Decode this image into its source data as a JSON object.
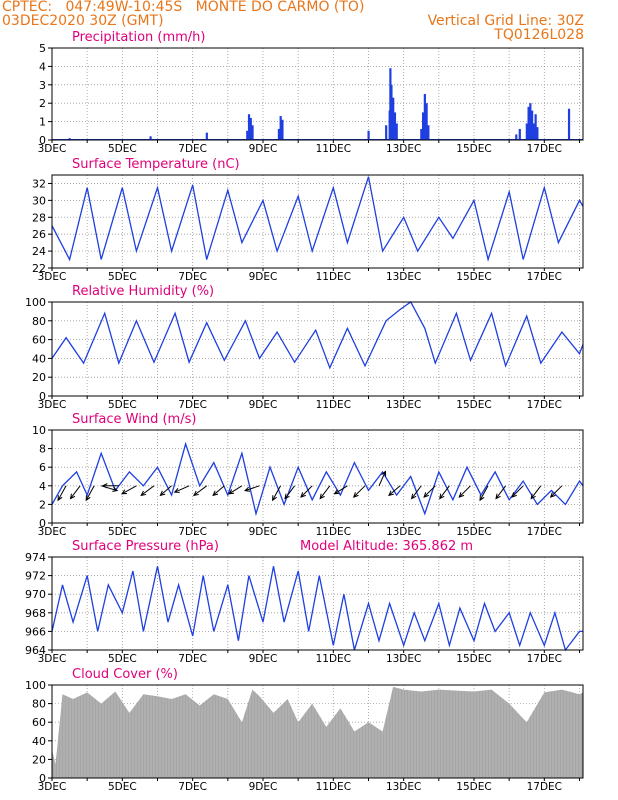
{
  "header": {
    "line1": "CPTEC:   047:49W-10:45S   MONTE DO CARMO (TO)",
    "line2": "03DEC2020 30Z (GMT)",
    "grid_note": "Vertical Grid Line: 30Z",
    "code": "TQ0126L028"
  },
  "colors": {
    "header": "#e8761a",
    "title": "#e0007a",
    "line": "#1f3fe0",
    "cloud": "#a6a6a6",
    "arrow": "#000000"
  },
  "chart_data": [
    {
      "id": "precip",
      "type": "bar",
      "title": "Precipitation (mm/h)",
      "ylim": [
        0,
        5
      ],
      "yticks": [
        0,
        1,
        2,
        3,
        4,
        5
      ],
      "xticks": [
        "3DEC",
        "5DEC",
        "7DEC",
        "9DEC",
        "11DEC",
        "13DEC",
        "15DEC",
        "17DEC"
      ],
      "xtick_days": [
        3,
        5,
        7,
        9,
        11,
        13,
        15,
        17
      ],
      "xlim_days": [
        3,
        18.1
      ],
      "x_days": [
        3.5,
        4.2,
        5.8,
        7.4,
        8.55,
        8.6,
        8.65,
        8.7,
        9.45,
        9.5,
        9.55,
        12.0,
        12.5,
        12.6,
        12.62,
        12.65,
        12.7,
        12.75,
        12.8,
        13.5,
        13.55,
        13.6,
        13.65,
        13.7,
        16.2,
        16.3,
        16.5,
        16.55,
        16.6,
        16.65,
        16.7,
        16.75,
        16.8,
        17.7
      ],
      "values": [
        0.1,
        0.05,
        0.2,
        0.4,
        0.5,
        1.4,
        1.2,
        0.8,
        0.6,
        1.3,
        1.1,
        0.5,
        0.8,
        1.6,
        3.9,
        3.0,
        2.3,
        1.5,
        0.9,
        0.6,
        1.5,
        2.5,
        2.0,
        0.8,
        0.3,
        0.6,
        0.9,
        1.8,
        2.0,
        1.6,
        0.9,
        1.4,
        0.7,
        1.7
      ]
    },
    {
      "id": "temp",
      "type": "line",
      "title": "Surface Temperature (nC)",
      "ylim": [
        22,
        33
      ],
      "yticks": [
        22,
        24,
        26,
        28,
        30,
        32
      ],
      "xticks": [
        "3DEC",
        "5DEC",
        "7DEC",
        "9DEC",
        "11DEC",
        "13DEC",
        "15DEC",
        "17DEC"
      ],
      "xtick_days": [
        3,
        5,
        7,
        9,
        11,
        13,
        15,
        17
      ],
      "xlim_days": [
        3,
        18.1
      ],
      "x_days": [
        3.0,
        3.5,
        4.0,
        4.4,
        5.0,
        5.4,
        6.0,
        6.4,
        7.0,
        7.4,
        8.0,
        8.4,
        9.0,
        9.4,
        10.0,
        10.4,
        11.0,
        11.4,
        12.0,
        12.4,
        13.0,
        13.4,
        14.0,
        14.4,
        15.0,
        15.4,
        16.0,
        16.4,
        17.0,
        17.4,
        18.0,
        18.1
      ],
      "values": [
        27,
        23,
        31.5,
        23,
        31.5,
        24,
        31.5,
        24,
        31.8,
        23,
        31.2,
        25,
        30,
        24,
        30.5,
        24,
        31.5,
        25,
        32.8,
        24,
        28,
        24,
        28,
        25.5,
        30,
        23,
        31,
        23,
        31.5,
        25,
        30,
        29.3
      ]
    },
    {
      "id": "rh",
      "type": "line",
      "title": "Relative Humidity (%)",
      "ylim": [
        0,
        100
      ],
      "yticks": [
        0,
        20,
        40,
        60,
        80,
        100
      ],
      "xticks": [
        "3DEC",
        "5DEC",
        "7DEC",
        "9DEC",
        "11DEC",
        "13DEC",
        "15DEC",
        "17DEC"
      ],
      "xtick_days": [
        3,
        5,
        7,
        9,
        11,
        13,
        15,
        17
      ],
      "xlim_days": [
        3,
        18.1
      ],
      "x_days": [
        3.0,
        3.4,
        3.9,
        4.5,
        4.9,
        5.4,
        5.9,
        6.5,
        6.9,
        7.4,
        7.9,
        8.5,
        8.9,
        9.4,
        9.9,
        10.5,
        10.9,
        11.4,
        11.9,
        12.5,
        12.9,
        13.2,
        13.6,
        13.9,
        14.5,
        14.9,
        15.5,
        15.9,
        16.5,
        16.9,
        17.5,
        18.0,
        18.1
      ],
      "values": [
        40,
        62,
        35,
        88,
        35,
        80,
        36,
        88,
        36,
        78,
        38,
        80,
        40,
        68,
        36,
        70,
        30,
        72,
        32,
        80,
        92,
        100,
        72,
        35,
        88,
        38,
        88,
        32,
        85,
        35,
        68,
        45,
        55
      ]
    },
    {
      "id": "wind",
      "type": "line",
      "title": "Surface Wind (m/s)",
      "ylim": [
        0,
        10
      ],
      "yticks": [
        0,
        2,
        4,
        6,
        8,
        10
      ],
      "xticks": [
        "3DEC",
        "5DEC",
        "7DEC",
        "9DEC",
        "11DEC",
        "13DEC",
        "15DEC",
        "17DEC"
      ],
      "xtick_days": [
        3,
        5,
        7,
        9,
        11,
        13,
        15,
        17
      ],
      "xlim_days": [
        3,
        18.1
      ],
      "x_days": [
        3.0,
        3.3,
        3.7,
        4.0,
        4.4,
        4.8,
        5.2,
        5.6,
        6.0,
        6.4,
        6.8,
        7.2,
        7.6,
        8.0,
        8.4,
        8.8,
        9.2,
        9.6,
        10.0,
        10.4,
        10.8,
        11.2,
        11.6,
        12.0,
        12.4,
        12.8,
        13.2,
        13.6,
        14.0,
        14.4,
        14.8,
        15.2,
        15.6,
        16.0,
        16.4,
        16.8,
        17.2,
        17.6,
        18.0,
        18.1
      ],
      "values": [
        2,
        4,
        5.5,
        3,
        7.5,
        3.5,
        5.5,
        4,
        6,
        3,
        8.5,
        4,
        6.5,
        3,
        7.5,
        1,
        6,
        2,
        6,
        2.5,
        5.5,
        3,
        6.5,
        3.5,
        5.5,
        3,
        5,
        1,
        5.5,
        2.5,
        6,
        3,
        5.5,
        2.5,
        4.5,
        2,
        3.5,
        2,
        4.5,
        4
      ],
      "arrows_x_days": [
        3.4,
        3.8,
        4.2,
        4.4,
        4.9,
        5.4,
        5.9,
        6.4,
        6.9,
        7.4,
        7.9,
        8.4,
        8.9,
        9.5,
        9.9,
        10.4,
        10.9,
        11.4,
        11.9,
        12.3,
        12.9,
        13.5,
        13.9,
        14.3,
        14.9,
        15.4,
        15.9,
        16.4,
        16.9,
        17.5
      ],
      "arrows_dx": [
        -0.5,
        -0.6,
        -0.5,
        1.0,
        -1.0,
        -0.9,
        -0.8,
        -0.7,
        -0.9,
        -0.8,
        -0.7,
        -0.8,
        -0.9,
        -0.5,
        -0.6,
        -0.7,
        -0.6,
        -0.8,
        -0.7,
        0.4,
        -0.7,
        -0.6,
        -0.7,
        -0.6,
        -0.7,
        -0.5,
        -0.6,
        -0.7,
        -0.6,
        -0.7
      ],
      "arrows_dy": [
        -0.9,
        -0.8,
        -0.9,
        -0.3,
        0.0,
        -0.5,
        -0.6,
        -0.6,
        -0.4,
        -0.6,
        -0.6,
        -0.5,
        -0.3,
        -0.9,
        -0.8,
        -0.7,
        -0.8,
        -0.5,
        -0.7,
        0.9,
        -0.6,
        -0.8,
        -0.7,
        -0.8,
        -0.7,
        -0.9,
        -0.8,
        -0.7,
        -0.8,
        -0.7
      ]
    },
    {
      "id": "press",
      "type": "line",
      "title": "Surface Pressure (hPa)",
      "subtitle": "Model Altitude: 365.862  m",
      "ylim": [
        964,
        974
      ],
      "yticks": [
        964,
        966,
        968,
        970,
        972,
        974
      ],
      "xticks": [
        "3DEC",
        "5DEC",
        "7DEC",
        "9DEC",
        "11DEC",
        "13DEC",
        "15DEC",
        "17DEC"
      ],
      "xtick_days": [
        3,
        5,
        7,
        9,
        11,
        13,
        15,
        17
      ],
      "xlim_days": [
        3,
        18.1
      ],
      "x_days": [
        3.0,
        3.3,
        3.6,
        4.0,
        4.3,
        4.6,
        5.0,
        5.3,
        5.6,
        6.0,
        6.3,
        6.6,
        7.0,
        7.3,
        7.6,
        8.0,
        8.3,
        8.6,
        9.0,
        9.3,
        9.6,
        10.0,
        10.3,
        10.6,
        11.0,
        11.3,
        11.6,
        12.0,
        12.3,
        12.6,
        13.0,
        13.3,
        13.6,
        14.0,
        14.3,
        14.6,
        15.0,
        15.3,
        15.6,
        16.0,
        16.3,
        16.6,
        17.0,
        17.3,
        17.6,
        18.0,
        18.1
      ],
      "values": [
        966,
        971,
        967,
        972,
        966,
        971,
        968,
        972.5,
        966,
        973,
        967,
        971,
        965.5,
        972,
        966,
        971,
        965,
        972,
        967,
        973,
        967,
        972.5,
        966,
        972,
        964.5,
        970,
        964,
        969,
        965,
        969,
        964.5,
        968,
        965,
        969,
        964.5,
        968.5,
        965,
        969,
        966,
        968,
        964.5,
        968,
        964.5,
        968,
        964,
        966,
        966
      ]
    },
    {
      "id": "cloud",
      "type": "area",
      "title": "Cloud Cover (%)",
      "ylim": [
        0,
        100
      ],
      "yticks": [
        0,
        20,
        40,
        60,
        80,
        100
      ],
      "xticks": [
        "3DEC",
        "5DEC",
        "7DEC",
        "9DEC",
        "11DEC",
        "13DEC",
        "15DEC",
        "17DEC"
      ],
      "xtick_days": [
        3,
        5,
        7,
        9,
        11,
        13,
        15,
        17
      ],
      "xlim_days": [
        3,
        18.1
      ],
      "x_days": [
        3.0,
        3.1,
        3.3,
        3.6,
        4.0,
        4.4,
        4.8,
        5.2,
        5.6,
        6.0,
        6.4,
        6.8,
        7.2,
        7.6,
        8.0,
        8.4,
        8.7,
        8.9,
        9.3,
        9.7,
        10.0,
        10.4,
        10.8,
        11.2,
        11.6,
        12.0,
        12.4,
        12.7,
        13.0,
        13.5,
        14.0,
        14.5,
        15.0,
        15.5,
        16.0,
        16.5,
        17.0,
        17.5,
        18.0,
        18.1
      ],
      "values": [
        30,
        15,
        90,
        85,
        92,
        80,
        93,
        70,
        90,
        88,
        85,
        90,
        78,
        90,
        85,
        60,
        95,
        88,
        70,
        85,
        60,
        80,
        55,
        75,
        50,
        60,
        50,
        98,
        95,
        93,
        95,
        94,
        93,
        95,
        80,
        60,
        92,
        95,
        90,
        92
      ]
    }
  ]
}
